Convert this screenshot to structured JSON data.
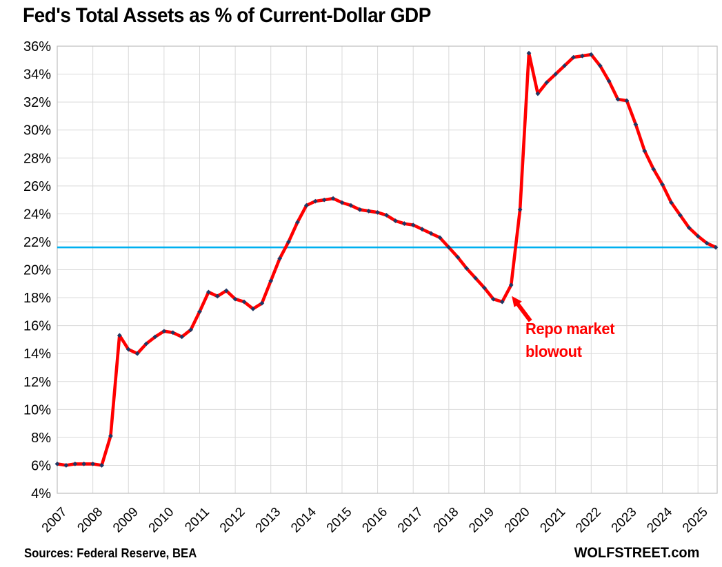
{
  "title": "Fed's Total Assets as % of Current-Dollar GDP",
  "footer": {
    "sources": "Sources: Federal Reserve, BEA",
    "brand": "WOLFSTREET.com"
  },
  "colors": {
    "series_line": "#FF0000",
    "series_marker": "#1F3864",
    "reference_line": "#00B0F0",
    "gridline": "#D9D9D9",
    "plot_border": "#BFBFBF",
    "annotation_text": "#FF0000",
    "text": "#000000",
    "background": "#FFFFFF"
  },
  "chart_data": {
    "type": "line",
    "title": "Fed's Total Assets as % of Current-Dollar GDP",
    "grid": true,
    "legend": false,
    "y_axis": {
      "min": 4,
      "max": 36,
      "step": 2,
      "tick_suffix": "%",
      "tick_labels": [
        "36%",
        "34%",
        "32%",
        "30%",
        "28%",
        "26%",
        "24%",
        "22%",
        "20%",
        "18%",
        "16%",
        "14%",
        "12%",
        "10%",
        "8%",
        "6%",
        "4%"
      ]
    },
    "x_axis": {
      "tick_labels": [
        "2007",
        "2008",
        "2009",
        "2010",
        "2011",
        "2012",
        "2013",
        "2014",
        "2015",
        "2016",
        "2017",
        "2018",
        "2019",
        "2020",
        "2021",
        "2022",
        "2023",
        "2024",
        "2025"
      ],
      "label_rotation_deg": -45
    },
    "series": [
      {
        "name": "Fed total assets as % of current-dollar GDP",
        "frequency": "quarterly",
        "start": "2007Q1",
        "end": "2025Q3",
        "color": "#FF0000",
        "marker_color": "#1F3864",
        "values": [
          6.1,
          6.0,
          6.1,
          6.1,
          6.1,
          6.0,
          8.1,
          15.3,
          14.3,
          14.0,
          14.7,
          15.2,
          15.6,
          15.5,
          15.2,
          15.7,
          17.0,
          18.4,
          18.1,
          18.5,
          17.9,
          17.7,
          17.2,
          17.6,
          19.2,
          20.8,
          22.0,
          23.4,
          24.6,
          24.9,
          25.0,
          25.1,
          24.8,
          24.6,
          24.3,
          24.2,
          24.1,
          23.9,
          23.5,
          23.3,
          23.2,
          22.9,
          22.6,
          22.3,
          21.6,
          20.9,
          20.1,
          19.4,
          18.7,
          17.9,
          17.7,
          18.9,
          24.3,
          35.5,
          32.6,
          33.4,
          34.0,
          34.6,
          35.2,
          35.3,
          35.4,
          34.6,
          33.5,
          32.2,
          32.1,
          30.4,
          28.5,
          27.2,
          26.1,
          24.8,
          23.9,
          23.0,
          22.4,
          21.9,
          21.6
        ]
      }
    ],
    "reference_line": {
      "value": 21.6,
      "color": "#00B0F0"
    },
    "annotation": {
      "lines": [
        "Repo market",
        "blowout"
      ],
      "color": "#FF0000",
      "arrow_target": {
        "quarter": "2019Q4",
        "value": 18.9
      }
    }
  }
}
